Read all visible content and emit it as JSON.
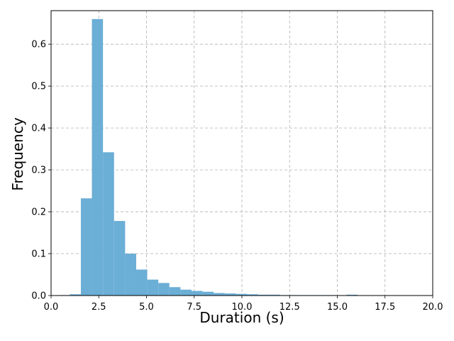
{
  "chart_data": {
    "type": "histogram",
    "x_label": "Duration (s)",
    "y_label": "Frequency",
    "color": "#6baed6",
    "grid": true,
    "bins": [
      0.4,
      0.98,
      1.56,
      2.14,
      2.72,
      3.3,
      3.88,
      4.46,
      5.04,
      5.62,
      6.2,
      6.78,
      7.36,
      7.94,
      8.52,
      9.1,
      9.68,
      10.26,
      10.84,
      11.42,
      12.0,
      12.58,
      13.16,
      13.74,
      14.32,
      14.9,
      15.48,
      16.06,
      16.64
    ],
    "values": [
      0.001,
      0.003,
      0.232,
      0.66,
      0.342,
      0.178,
      0.1,
      0.062,
      0.038,
      0.03,
      0.02,
      0.014,
      0.011,
      0.009,
      0.006,
      0.005,
      0.004,
      0.003,
      0.002,
      0.002,
      0.001,
      0.001,
      0.001,
      0.001,
      0.001,
      0,
      0.002,
      0
    ],
    "xlim": [
      0,
      20
    ],
    "xticks": [
      {
        "value": 0,
        "label": "0.0"
      },
      2.5,
      {
        "value": 5,
        "label": "5.0"
      },
      7.5,
      {
        "value": 10,
        "label": "10.0"
      },
      12.5,
      {
        "value": 15,
        "label": "15.0"
      },
      17.5,
      {
        "value": 20,
        "label": "20.0"
      }
    ],
    "ylim": [
      0,
      0.68
    ],
    "yticks": [
      {
        "value": 0,
        "label": "0.0"
      },
      0.1,
      0.2,
      0.3,
      0.4,
      0.5,
      0.6
    ]
  }
}
